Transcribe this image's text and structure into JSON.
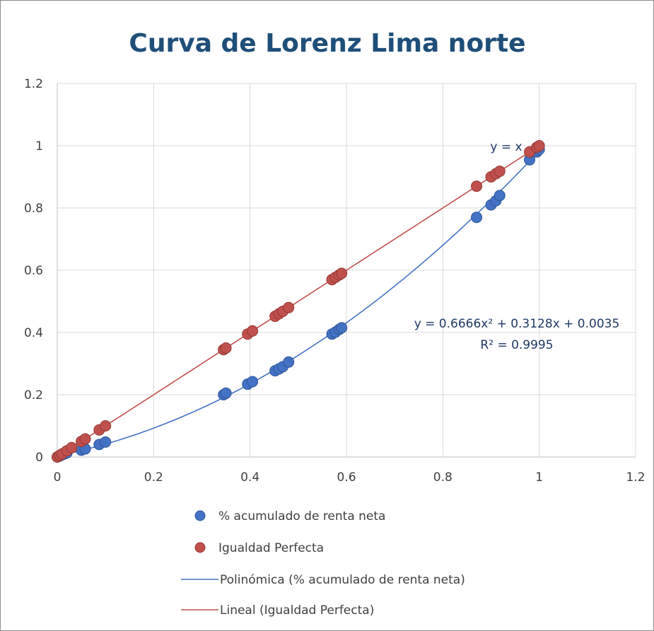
{
  "chart_data": {
    "type": "scatter",
    "title": "Curva de Lorenz Lima norte",
    "xlim": [
      0,
      1.2
    ],
    "ylim": [
      0,
      1.2
    ],
    "x_ticks": [
      "0",
      "0.2",
      "0.4",
      "0.6",
      "0.8",
      "1",
      "1.2"
    ],
    "y_ticks": [
      "0",
      "0.2",
      "0.4",
      "0.6",
      "0.8",
      "1",
      "1.2"
    ],
    "grid": true,
    "legend_position": "bottom",
    "series": [
      {
        "name": "% acumulado de renta neta",
        "color": "#4472c4",
        "points": [
          [
            0.0,
            0.0
          ],
          [
            0.003,
            0.002
          ],
          [
            0.006,
            0.004
          ],
          [
            0.01,
            0.007
          ],
          [
            0.015,
            0.01
          ],
          [
            0.02,
            0.013
          ],
          [
            0.05,
            0.022
          ],
          [
            0.058,
            0.026
          ],
          [
            0.087,
            0.04
          ],
          [
            0.1,
            0.048
          ],
          [
            0.345,
            0.2
          ],
          [
            0.35,
            0.205
          ],
          [
            0.395,
            0.234
          ],
          [
            0.405,
            0.242
          ],
          [
            0.452,
            0.277
          ],
          [
            0.46,
            0.283
          ],
          [
            0.468,
            0.29
          ],
          [
            0.48,
            0.305
          ],
          [
            0.57,
            0.395
          ],
          [
            0.577,
            0.401
          ],
          [
            0.585,
            0.41
          ],
          [
            0.59,
            0.415
          ],
          [
            0.87,
            0.77
          ],
          [
            0.9,
            0.81
          ],
          [
            0.91,
            0.823
          ],
          [
            0.918,
            0.84
          ],
          [
            0.98,
            0.955
          ],
          [
            0.995,
            0.98
          ],
          [
            1.0,
            0.988
          ]
        ]
      },
      {
        "name": "Igualdad Perfecta",
        "color": "#c0504d",
        "points": [
          [
            0.0,
            0.0
          ],
          [
            0.005,
            0.005
          ],
          [
            0.01,
            0.01
          ],
          [
            0.02,
            0.02
          ],
          [
            0.03,
            0.03
          ],
          [
            0.05,
            0.05
          ],
          [
            0.058,
            0.058
          ],
          [
            0.087,
            0.087
          ],
          [
            0.1,
            0.1
          ],
          [
            0.345,
            0.345
          ],
          [
            0.35,
            0.35
          ],
          [
            0.395,
            0.395
          ],
          [
            0.405,
            0.405
          ],
          [
            0.452,
            0.452
          ],
          [
            0.46,
            0.46
          ],
          [
            0.468,
            0.468
          ],
          [
            0.48,
            0.48
          ],
          [
            0.57,
            0.57
          ],
          [
            0.577,
            0.577
          ],
          [
            0.585,
            0.585
          ],
          [
            0.59,
            0.59
          ],
          [
            0.87,
            0.87
          ],
          [
            0.9,
            0.9
          ],
          [
            0.91,
            0.91
          ],
          [
            0.918,
            0.918
          ],
          [
            0.98,
            0.98
          ],
          [
            0.995,
            0.995
          ],
          [
            1.0,
            1.0
          ]
        ]
      }
    ],
    "trendlines": [
      {
        "name": "Polinómica (% acumulado de renta neta)",
        "color": "#4472c4",
        "kind": "polynomial",
        "coefficients": [
          0.0035,
          0.3128,
          0.6666
        ],
        "x_range": [
          0,
          1
        ],
        "equation": "y = 0.6666x² + 0.3128x + 0.0035",
        "r_squared": "R² = 0.9995"
      },
      {
        "name": "Lineal (Igualdad Perfecta)",
        "color": "#c0504d",
        "kind": "linear",
        "coefficients": [
          0,
          1
        ],
        "x_range": [
          0,
          1
        ],
        "equation": "y = x"
      }
    ]
  }
}
